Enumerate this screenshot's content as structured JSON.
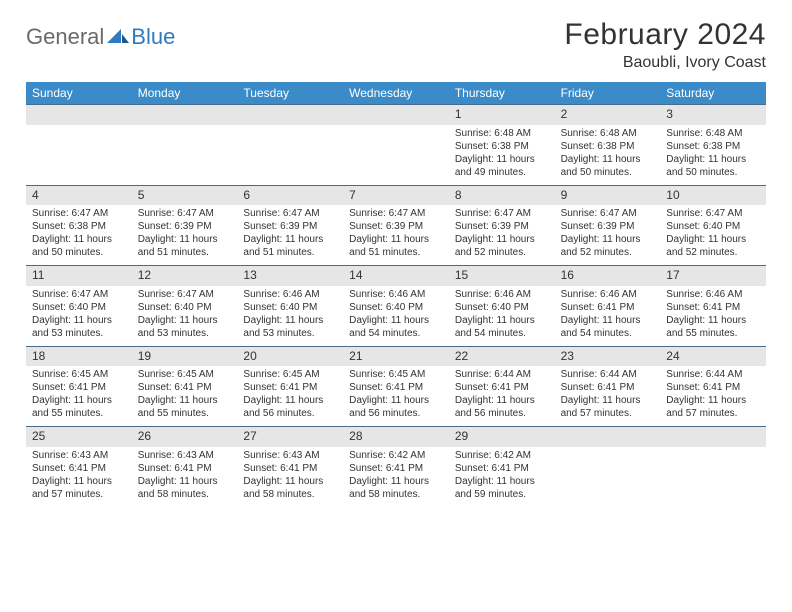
{
  "logo": {
    "text1": "General",
    "text2": "Blue"
  },
  "title": "February 2024",
  "location": "Baoubli, Ivory Coast",
  "colors": {
    "header_bg": "#3b8bc9",
    "header_text": "#ffffff",
    "daynum_bg": "#e6e6e6",
    "cell_border": "#4a6a8a",
    "logo_gray": "#6a6a6a",
    "logo_blue": "#2f7bbf"
  },
  "weekdays": [
    "Sunday",
    "Monday",
    "Tuesday",
    "Wednesday",
    "Thursday",
    "Friday",
    "Saturday"
  ],
  "weeks": [
    [
      {
        "day": "",
        "sunrise": "",
        "sunset": "",
        "daylight": ""
      },
      {
        "day": "",
        "sunrise": "",
        "sunset": "",
        "daylight": ""
      },
      {
        "day": "",
        "sunrise": "",
        "sunset": "",
        "daylight": ""
      },
      {
        "day": "",
        "sunrise": "",
        "sunset": "",
        "daylight": ""
      },
      {
        "day": "1",
        "sunrise": "Sunrise: 6:48 AM",
        "sunset": "Sunset: 6:38 PM",
        "daylight": "Daylight: 11 hours and 49 minutes."
      },
      {
        "day": "2",
        "sunrise": "Sunrise: 6:48 AM",
        "sunset": "Sunset: 6:38 PM",
        "daylight": "Daylight: 11 hours and 50 minutes."
      },
      {
        "day": "3",
        "sunrise": "Sunrise: 6:48 AM",
        "sunset": "Sunset: 6:38 PM",
        "daylight": "Daylight: 11 hours and 50 minutes."
      }
    ],
    [
      {
        "day": "4",
        "sunrise": "Sunrise: 6:47 AM",
        "sunset": "Sunset: 6:38 PM",
        "daylight": "Daylight: 11 hours and 50 minutes."
      },
      {
        "day": "5",
        "sunrise": "Sunrise: 6:47 AM",
        "sunset": "Sunset: 6:39 PM",
        "daylight": "Daylight: 11 hours and 51 minutes."
      },
      {
        "day": "6",
        "sunrise": "Sunrise: 6:47 AM",
        "sunset": "Sunset: 6:39 PM",
        "daylight": "Daylight: 11 hours and 51 minutes."
      },
      {
        "day": "7",
        "sunrise": "Sunrise: 6:47 AM",
        "sunset": "Sunset: 6:39 PM",
        "daylight": "Daylight: 11 hours and 51 minutes."
      },
      {
        "day": "8",
        "sunrise": "Sunrise: 6:47 AM",
        "sunset": "Sunset: 6:39 PM",
        "daylight": "Daylight: 11 hours and 52 minutes."
      },
      {
        "day": "9",
        "sunrise": "Sunrise: 6:47 AM",
        "sunset": "Sunset: 6:39 PM",
        "daylight": "Daylight: 11 hours and 52 minutes."
      },
      {
        "day": "10",
        "sunrise": "Sunrise: 6:47 AM",
        "sunset": "Sunset: 6:40 PM",
        "daylight": "Daylight: 11 hours and 52 minutes."
      }
    ],
    [
      {
        "day": "11",
        "sunrise": "Sunrise: 6:47 AM",
        "sunset": "Sunset: 6:40 PM",
        "daylight": "Daylight: 11 hours and 53 minutes."
      },
      {
        "day": "12",
        "sunrise": "Sunrise: 6:47 AM",
        "sunset": "Sunset: 6:40 PM",
        "daylight": "Daylight: 11 hours and 53 minutes."
      },
      {
        "day": "13",
        "sunrise": "Sunrise: 6:46 AM",
        "sunset": "Sunset: 6:40 PM",
        "daylight": "Daylight: 11 hours and 53 minutes."
      },
      {
        "day": "14",
        "sunrise": "Sunrise: 6:46 AM",
        "sunset": "Sunset: 6:40 PM",
        "daylight": "Daylight: 11 hours and 54 minutes."
      },
      {
        "day": "15",
        "sunrise": "Sunrise: 6:46 AM",
        "sunset": "Sunset: 6:40 PM",
        "daylight": "Daylight: 11 hours and 54 minutes."
      },
      {
        "day": "16",
        "sunrise": "Sunrise: 6:46 AM",
        "sunset": "Sunset: 6:41 PM",
        "daylight": "Daylight: 11 hours and 54 minutes."
      },
      {
        "day": "17",
        "sunrise": "Sunrise: 6:46 AM",
        "sunset": "Sunset: 6:41 PM",
        "daylight": "Daylight: 11 hours and 55 minutes."
      }
    ],
    [
      {
        "day": "18",
        "sunrise": "Sunrise: 6:45 AM",
        "sunset": "Sunset: 6:41 PM",
        "daylight": "Daylight: 11 hours and 55 minutes."
      },
      {
        "day": "19",
        "sunrise": "Sunrise: 6:45 AM",
        "sunset": "Sunset: 6:41 PM",
        "daylight": "Daylight: 11 hours and 55 minutes."
      },
      {
        "day": "20",
        "sunrise": "Sunrise: 6:45 AM",
        "sunset": "Sunset: 6:41 PM",
        "daylight": "Daylight: 11 hours and 56 minutes."
      },
      {
        "day": "21",
        "sunrise": "Sunrise: 6:45 AM",
        "sunset": "Sunset: 6:41 PM",
        "daylight": "Daylight: 11 hours and 56 minutes."
      },
      {
        "day": "22",
        "sunrise": "Sunrise: 6:44 AM",
        "sunset": "Sunset: 6:41 PM",
        "daylight": "Daylight: 11 hours and 56 minutes."
      },
      {
        "day": "23",
        "sunrise": "Sunrise: 6:44 AM",
        "sunset": "Sunset: 6:41 PM",
        "daylight": "Daylight: 11 hours and 57 minutes."
      },
      {
        "day": "24",
        "sunrise": "Sunrise: 6:44 AM",
        "sunset": "Sunset: 6:41 PM",
        "daylight": "Daylight: 11 hours and 57 minutes."
      }
    ],
    [
      {
        "day": "25",
        "sunrise": "Sunrise: 6:43 AM",
        "sunset": "Sunset: 6:41 PM",
        "daylight": "Daylight: 11 hours and 57 minutes."
      },
      {
        "day": "26",
        "sunrise": "Sunrise: 6:43 AM",
        "sunset": "Sunset: 6:41 PM",
        "daylight": "Daylight: 11 hours and 58 minutes."
      },
      {
        "day": "27",
        "sunrise": "Sunrise: 6:43 AM",
        "sunset": "Sunset: 6:41 PM",
        "daylight": "Daylight: 11 hours and 58 minutes."
      },
      {
        "day": "28",
        "sunrise": "Sunrise: 6:42 AM",
        "sunset": "Sunset: 6:41 PM",
        "daylight": "Daylight: 11 hours and 58 minutes."
      },
      {
        "day": "29",
        "sunrise": "Sunrise: 6:42 AM",
        "sunset": "Sunset: 6:41 PM",
        "daylight": "Daylight: 11 hours and 59 minutes."
      },
      {
        "day": "",
        "sunrise": "",
        "sunset": "",
        "daylight": ""
      },
      {
        "day": "",
        "sunrise": "",
        "sunset": "",
        "daylight": ""
      }
    ]
  ]
}
